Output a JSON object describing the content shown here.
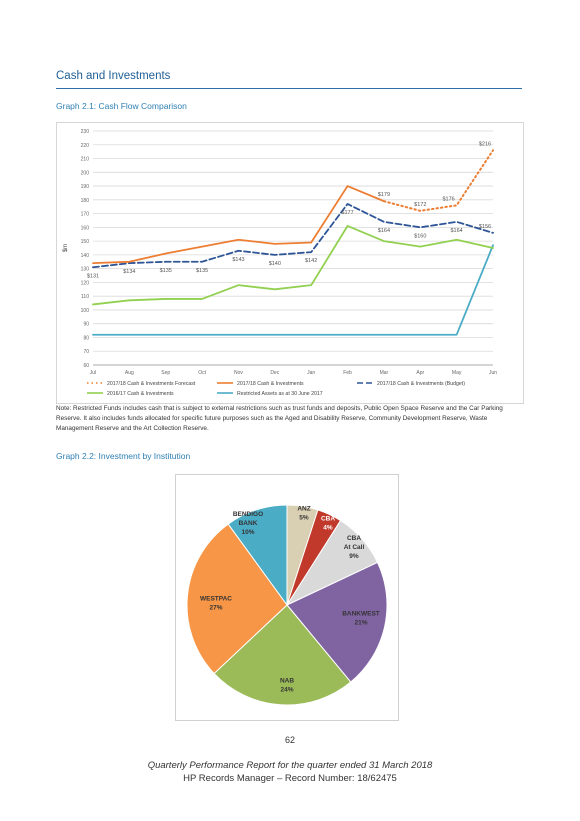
{
  "section_title": "Cash and Investments",
  "graph1_title": "Graph 2.1:  Cash Flow Comparison",
  "graph2_title": "Graph 2.2:  Investment by Institution",
  "note": "Note: Restricted Funds includes cash that is subject to external restrictions such as trust funds and deposits, Public Open Space Reserve and the Car Parking Reserve. It also includes funds allocated for specific future purposes such as the Aged and Disability Reserve, Community Development Reserve, Waste Management Reserve and the Art Collection Reserve.",
  "page_number": "62",
  "footer_line1": "Quarterly Performance Report for the quarter ended 31 March 2018",
  "footer_line2": "HP Records Manager – Record Number: 18/62475",
  "chart_data": [
    {
      "type": "line",
      "title": "",
      "ylabel": "$m",
      "xlabel": "",
      "ylim": [
        60,
        230
      ],
      "yticks": [
        60,
        70,
        80,
        90,
        100,
        110,
        120,
        130,
        140,
        150,
        160,
        170,
        180,
        190,
        200,
        210,
        220,
        230
      ],
      "categories": [
        "Jul",
        "Aug",
        "Sep",
        "Oct",
        "Nov",
        "Dec",
        "Jan",
        "Feb",
        "Mar",
        "Apr",
        "May",
        "Jun"
      ],
      "grid": true,
      "legend_position": "bottom",
      "series": [
        {
          "name": "2017/18 Cash & Investments Forecast",
          "color": "#ed7d31",
          "style": "dotted",
          "values": [
            null,
            null,
            null,
            null,
            null,
            null,
            null,
            null,
            179,
            172,
            176,
            216
          ]
        },
        {
          "name": "2017/18 Cash & Investments",
          "color": "#ed7d31",
          "style": "solid",
          "values": [
            134,
            135,
            141,
            146,
            151,
            148,
            149,
            190,
            179,
            null,
            null,
            null
          ]
        },
        {
          "name": "2017/18 Cash & Investments (Budget)",
          "color": "#2e5597",
          "style": "dashed",
          "values": [
            131,
            134,
            135,
            135,
            143,
            140,
            142,
            177,
            164,
            160,
            164,
            156
          ]
        },
        {
          "name": "2016/17 Cash & Investments",
          "color": "#92d050",
          "style": "solid",
          "values": [
            104,
            107,
            108,
            108,
            118,
            115,
            118,
            161,
            150,
            146,
            151,
            145
          ]
        },
        {
          "name": "Restricted Assets as at 30 June 2017",
          "color": "#4bacc6",
          "style": "solid",
          "values": [
            82,
            82,
            82,
            82,
            82,
            82,
            82,
            82,
            82,
            82,
            82,
            147
          ]
        }
      ],
      "data_labels": [
        {
          "series": 2,
          "index": 0,
          "text": "$131",
          "pos": "below"
        },
        {
          "series": 2,
          "index": 1,
          "text": "$134",
          "pos": "below"
        },
        {
          "series": 2,
          "index": 2,
          "text": "$135",
          "pos": "below"
        },
        {
          "series": 2,
          "index": 3,
          "text": "$135",
          "pos": "below"
        },
        {
          "series": 2,
          "index": 4,
          "text": "$143",
          "pos": "below"
        },
        {
          "series": 2,
          "index": 5,
          "text": "$140",
          "pos": "below"
        },
        {
          "series": 2,
          "index": 6,
          "text": "$142",
          "pos": "below"
        },
        {
          "series": 2,
          "index": 7,
          "text": "$177",
          "pos": "below"
        },
        {
          "series": 2,
          "index": 8,
          "text": "$164",
          "pos": "below"
        },
        {
          "series": 2,
          "index": 9,
          "text": "$160",
          "pos": "below"
        },
        {
          "series": 2,
          "index": 10,
          "text": "$164",
          "pos": "below"
        },
        {
          "series": 2,
          "index": 11,
          "text": "$156",
          "pos": "above-left"
        },
        {
          "series": 0,
          "index": 8,
          "text": "$179",
          "pos": "above"
        },
        {
          "series": 0,
          "index": 9,
          "text": "$172",
          "pos": "above"
        },
        {
          "series": 0,
          "index": 10,
          "text": "$176",
          "pos": "above-left"
        },
        {
          "series": 0,
          "index": 11,
          "text": "$216",
          "pos": "above-left"
        }
      ]
    },
    {
      "type": "pie",
      "title": "",
      "slices": [
        {
          "label": "ANZ",
          "value": 5,
          "text": "5%",
          "color": "#d9d0b3"
        },
        {
          "label": "CBA",
          "value": 4,
          "text": "4%",
          "color": "#c0392b"
        },
        {
          "label": "CBA At Call",
          "value": 9,
          "text": "9%",
          "color": "#d9d9d9"
        },
        {
          "label": "BANKWEST",
          "value": 21,
          "text": "21%",
          "color": "#8064a2"
        },
        {
          "label": "NAB",
          "value": 24,
          "text": "24%",
          "color": "#9bbb59"
        },
        {
          "label": "WESTPAC",
          "value": 27,
          "text": "27%",
          "color": "#f79646"
        },
        {
          "label": "BENDIGO BANK",
          "value": 10,
          "text": "10%",
          "color": "#4bacc6"
        }
      ]
    }
  ]
}
